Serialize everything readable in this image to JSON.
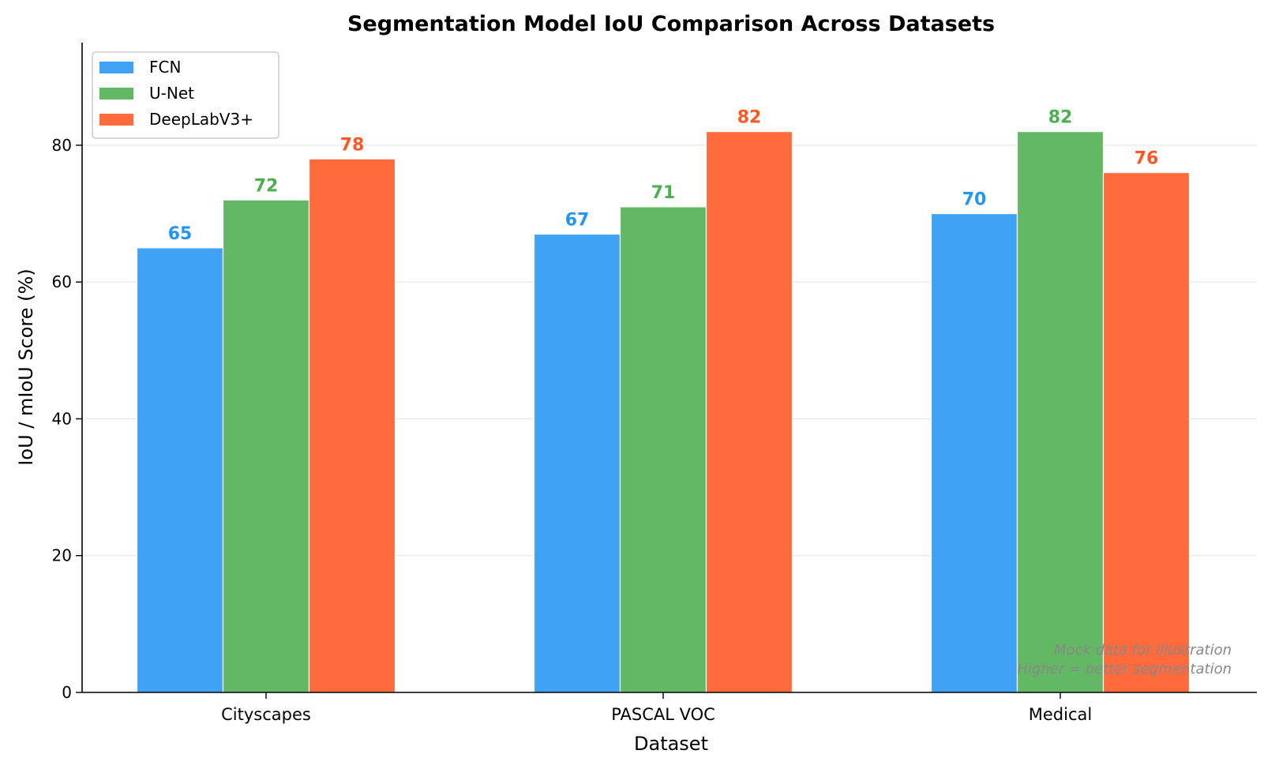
{
  "chart_data": {
    "type": "bar",
    "title": "Segmentation Model IoU Comparison Across Datasets",
    "xlabel": "Dataset",
    "ylabel": "IoU / mIoU Score (%)",
    "categories": [
      "Cityscapes",
      "PASCAL VOC",
      "Medical"
    ],
    "series": [
      {
        "name": "FCN",
        "color": "#3fa2f5",
        "label_color": "#2196f3",
        "values": [
          65,
          67,
          70
        ]
      },
      {
        "name": "U-Net",
        "color": "#63b864",
        "label_color": "#4caf50",
        "values": [
          72,
          71,
          82
        ]
      },
      {
        "name": "DeepLabV3+",
        "color": "#ff6b3d",
        "label_color": "#ff5722",
        "values": [
          78,
          82,
          76
        ]
      }
    ],
    "ylim": [
      0,
      95
    ],
    "yticks": [
      0,
      20,
      40,
      60,
      80
    ],
    "grid": "horizontal",
    "legend_position": "top-left",
    "annotations": [
      "Mock data for illustration",
      "Higher = better segmentation"
    ]
  }
}
